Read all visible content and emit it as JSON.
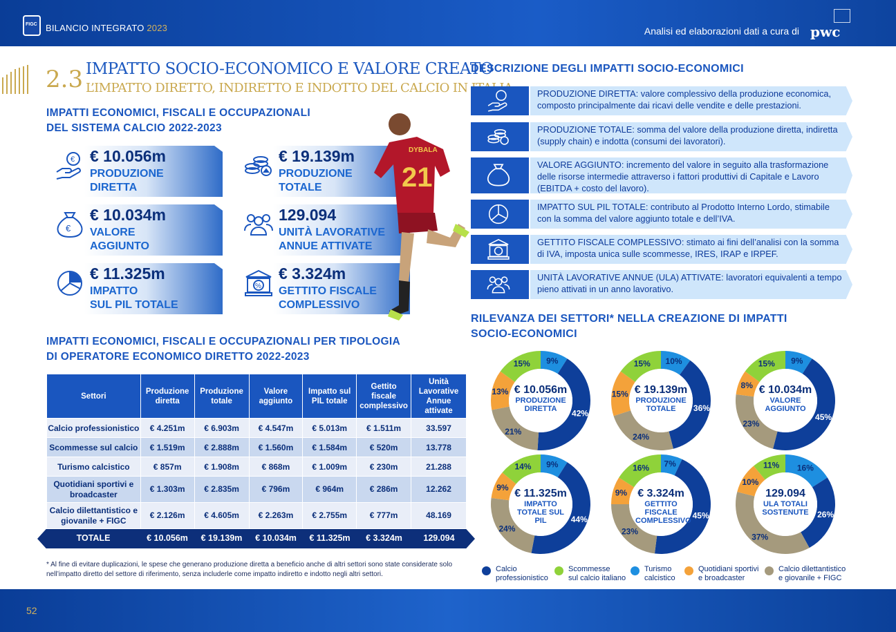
{
  "header": {
    "logo_text": "FIGC",
    "doc_title": "BILANCIO INTEGRATO",
    "doc_year": "2023",
    "credit": "Analisi ed elaborazioni dati a cura di",
    "pwc": "pwc"
  },
  "page_number": "52",
  "section": {
    "number": "2.3",
    "title": "IMPATTO SOCIO-ECONOMICO E VALORE CREATO",
    "subtitle": "L’IMPATTO DIRETTO, INDIRETTO E INDOTTO DEL CALCIO IN ITALIA"
  },
  "kpi_heading": [
    "IMPATTI ECONOMICI, FISCALI E OCCUPAZIONALI",
    "DEL SISTEMA CALCIO 2022-2023"
  ],
  "kpis": [
    {
      "value": "€ 10.056m",
      "label1": "PRODUZIONE",
      "label2": "DIRETTA",
      "icon": "hand-coin-icon"
    },
    {
      "value": "€ 19.139m",
      "label1": "PRODUZIONE",
      "label2": "TOTALE",
      "icon": "coin-stack-icon"
    },
    {
      "value": "€ 10.034m",
      "label1": "VALORE",
      "label2": "AGGIUNTO",
      "icon": "money-bag-icon"
    },
    {
      "value": "129.094",
      "label1": "UNITÀ LAVORATIVE",
      "label2": "ANNUE ATTIVATE",
      "icon": "people-icon"
    },
    {
      "value": "€ 11.325m",
      "label1": "IMPATTO",
      "label2": "SUL PIL TOTALE",
      "icon": "pie-chart-icon"
    },
    {
      "value": "€ 3.324m",
      "label1": "GETTITO FISCALE",
      "label2": "COMPLESSIVO",
      "icon": "bank-percent-icon"
    }
  ],
  "player": {
    "name": "DYBALA",
    "number": "21"
  },
  "table_heading": [
    "IMPATTI ECONOMICI, FISCALI E OCCUPAZIONALI PER TIPOLOGIA",
    "DI OPERATORE ECONOMICO DIRETTO 2022-2023"
  ],
  "table": {
    "headers": [
      "Settori",
      "Produzione diretta",
      "Produzione totale",
      "Valore aggiunto",
      "Impatto sul PIL totale",
      "Gettito fiscale complessivo",
      "Unità Lavorative Annue attivate"
    ],
    "rows": [
      [
        "Calcio professionistico",
        "€ 4.251m",
        "€ 6.903m",
        "€ 4.547m",
        "€ 5.013m",
        "€ 1.511m",
        "33.597"
      ],
      [
        "Scommesse sul calcio",
        "€ 1.519m",
        "€ 2.888m",
        "€ 1.560m",
        "€ 1.584m",
        "€ 520m",
        "13.778"
      ],
      [
        "Turismo calcistico",
        "€ 857m",
        "€ 1.908m",
        "€ 868m",
        "€ 1.009m",
        "€ 230m",
        "21.288"
      ],
      [
        "Quotidiani sportivi e broadcaster",
        "€ 1.303m",
        "€ 2.835m",
        "€ 796m",
        "€ 964m",
        "€ 286m",
        "12.262"
      ],
      [
        "Calcio dilettantistico e giovanile + FIGC",
        "€ 2.126m",
        "€ 4.605m",
        "€ 2.263m",
        "€ 2.755m",
        "€ 777m",
        "48.169"
      ]
    ],
    "total": [
      "TOTALE",
      "€ 10.056m",
      "€ 19.139m",
      "€ 10.034m",
      "€ 11.325m",
      "€ 3.324m",
      "129.094"
    ]
  },
  "footnote": "* Al fine di evitare duplicazioni, le spese che generano produzione diretta a beneficio anche di altri settori sono state considerate solo nell’impatto diretto del settore di riferimento, senza includerle come impatto indiretto e indotto negli altri settori.",
  "desc_heading": "DESCRIZIONE DEGLI IMPATTI SOCIO-ECONOMICI",
  "descriptions": [
    {
      "icon": "hand-coin-icon",
      "text": "PRODUZIONE DIRETTA: valore complessivo della produzione economica, composto principalmente dai ricavi delle vendite e delle prestazioni."
    },
    {
      "icon": "coin-stack-icon",
      "text": "PRODUZIONE TOTALE: somma del valore della produzione diretta, indiretta (supply chain) e indotta (consumi dei lavoratori)."
    },
    {
      "icon": "money-bag-icon",
      "text": "VALORE AGGIUNTO: incremento del valore in seguito alla trasformazione delle risorse intermedie attraverso i fattori produttivi di Capitale e Lavoro (EBITDA + costo del lavoro)."
    },
    {
      "icon": "pie-chart-icon",
      "text": "IMPATTO SUL PIL TOTALE: contributo al Prodotto Interno Lordo, stimabile con la somma del valore aggiunto totale e dell’IVA."
    },
    {
      "icon": "bank-percent-icon",
      "text": "GETTITO FISCALE COMPLESSIVO: stimato ai fini dell’analisi con la somma di IVA, imposta unica sulle scommesse, IRES, IRAP e IRPEF."
    },
    {
      "icon": "people-icon",
      "text": "UNITÀ LAVORATIVE ANNUE (ULA) ATTIVATE: lavoratori equivalenti a tempo pieno attivati in un anno lavorativo."
    }
  ],
  "donut_heading": [
    "RILEVANZA DEI SETTORI* NELLA CREAZIONE DI IMPATTI",
    "SOCIO-ECONOMICI"
  ],
  "colors": {
    "professional": "#0e3f9a",
    "betting": "#8fd23a",
    "tourism": "#1e8fe0",
    "media": "#f4a23a",
    "amateur": "#a59a7d"
  },
  "chart_data": [
    {
      "type": "pie",
      "title": "€ 10.056m",
      "subtitle": "PRODUZIONE DIRETTA",
      "categories": [
        "Calcio professionistico",
        "Scommesse sul calcio italiano",
        "Turismo calcistico",
        "Quotidiani sportivi e broadcaster",
        "Calcio dilettantistico e giovanile + FIGC"
      ],
      "values": [
        42,
        15,
        9,
        13,
        21
      ]
    },
    {
      "type": "pie",
      "title": "€ 19.139m",
      "subtitle": "PRODUZIONE TOTALE",
      "categories": [
        "Calcio professionistico",
        "Scommesse sul calcio italiano",
        "Turismo calcistico",
        "Quotidiani sportivi e broadcaster",
        "Calcio dilettantistico e giovanile + FIGC"
      ],
      "values": [
        36,
        15,
        10,
        15,
        24
      ]
    },
    {
      "type": "pie",
      "title": "€ 10.034m",
      "subtitle": "VALORE AGGIUNTO",
      "categories": [
        "Calcio professionistico",
        "Scommesse sul calcio italiano",
        "Turismo calcistico",
        "Quotidiani sportivi e broadcaster",
        "Calcio dilettantistico e giovanile + FIGC"
      ],
      "values": [
        45,
        15,
        9,
        8,
        23
      ]
    },
    {
      "type": "pie",
      "title": "€ 11.325m",
      "subtitle": "IMPATTO TOTALE SUL PIL",
      "categories": [
        "Calcio professionistico",
        "Scommesse sul calcio italiano",
        "Turismo calcistico",
        "Quotidiani sportivi e broadcaster",
        "Calcio dilettantistico e giovanile + FIGC"
      ],
      "values": [
        44,
        14,
        9,
        9,
        24
      ]
    },
    {
      "type": "pie",
      "title": "€ 3.324m",
      "subtitle": "GETTITO FISCALE COMPLESSIVO",
      "categories": [
        "Calcio professionistico",
        "Scommesse sul calcio italiano",
        "Turismo calcistico",
        "Quotidiani sportivi e broadcaster",
        "Calcio dilettantistico e giovanile + FIGC"
      ],
      "values": [
        45,
        16,
        7,
        9,
        23
      ]
    },
    {
      "type": "pie",
      "title": "129.094",
      "subtitle": "ULA TOTALI SOSTENUTE",
      "categories": [
        "Calcio professionistico",
        "Scommesse sul calcio italiano",
        "Turismo calcistico",
        "Quotidiani sportivi e broadcaster",
        "Calcio dilettantistico e giovanile + FIGC"
      ],
      "values": [
        26,
        11,
        16,
        10,
        37
      ]
    }
  ],
  "legend": [
    {
      "label1": "Calcio",
      "label2": "professionistico",
      "color": "#0e3f9a"
    },
    {
      "label1": "Scommesse",
      "label2": "sul calcio italiano",
      "color": "#8fd23a"
    },
    {
      "label1": "Turismo",
      "label2": "calcistico",
      "color": "#1e8fe0"
    },
    {
      "label1": "Quotidiani sportivi",
      "label2": "e broadcaster",
      "color": "#f4a23a"
    },
    {
      "label1": "Calcio dilettantistico",
      "label2": "e giovanile + FIGC",
      "color": "#a59a7d"
    }
  ]
}
